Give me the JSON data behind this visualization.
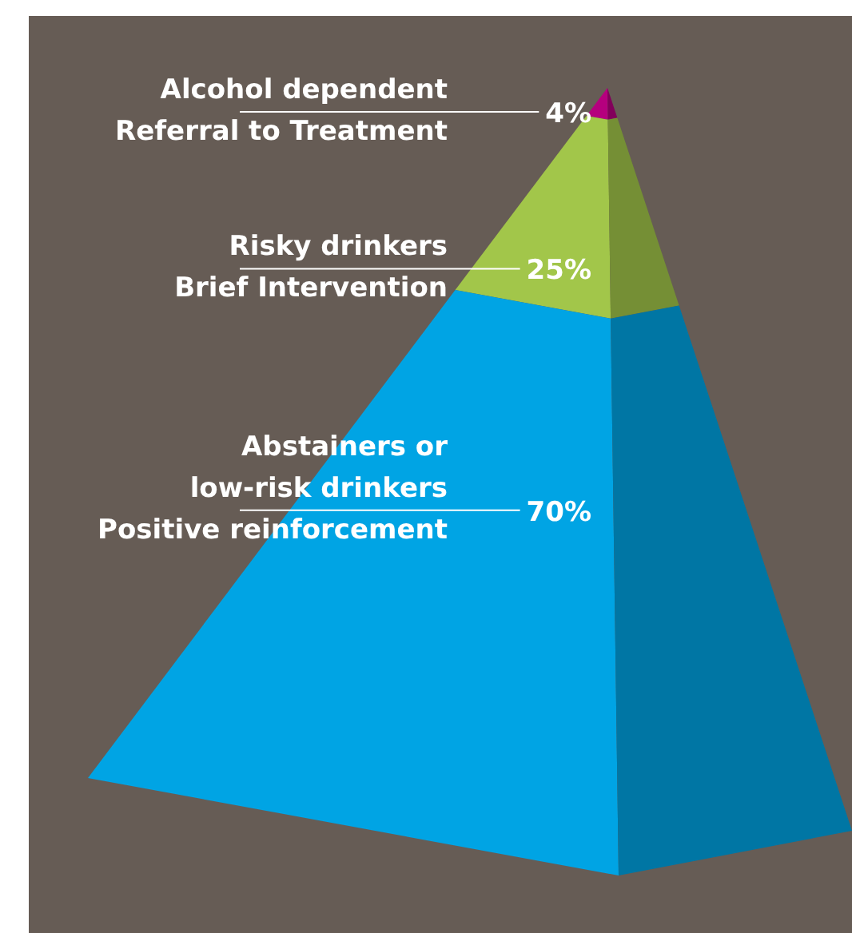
{
  "chart_data": {
    "type": "other",
    "categories": [
      "Alcohol dependent\nReferral to Treatment",
      "Risky drinkers\nBrief Intervention",
      "Abstainers or\nlow-risk drinkers\nPositive reinforcement"
    ],
    "values": [
      4,
      25,
      70
    ],
    "value_labels": [
      "4%",
      "25%",
      "70%"
    ],
    "colors": [
      "#b5007e",
      "#a2c64a",
      "#00a4e4"
    ]
  }
}
